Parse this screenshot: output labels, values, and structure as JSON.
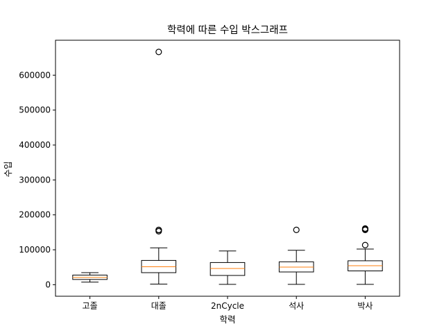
{
  "chart_data": {
    "type": "box",
    "title": "학력에 따른 수입 박스그래프",
    "xlabel": "학력",
    "ylabel": "수입",
    "categories": [
      "고졸",
      "대졸",
      "2nCycle",
      "석사",
      "박사"
    ],
    "ylim": [
      -33000,
      700000
    ],
    "yticks": [
      0,
      100000,
      200000,
      300000,
      400000,
      500000,
      600000
    ],
    "ytick_labels": [
      "0",
      "100000",
      "200000",
      "300000",
      "400000",
      "500000",
      "600000"
    ],
    "grid": false,
    "boxes": [
      {
        "category": "고졸",
        "whisker_low": 7500,
        "q1": 15000,
        "median": 21000,
        "q3": 27500,
        "whisker_high": 34500,
        "outliers": []
      },
      {
        "category": "대졸",
        "whisker_low": 1700,
        "q1": 34500,
        "median": 51500,
        "q3": 69500,
        "whisker_high": 105500,
        "outliers": [
          153000,
          156500,
          157000,
          666500
        ]
      },
      {
        "category": "2nCycle",
        "whisker_low": 1000,
        "q1": 26500,
        "median": 46500,
        "q3": 63500,
        "whisker_high": 96500,
        "outliers": []
      },
      {
        "category": "석사",
        "whisker_low": 1000,
        "q1": 36500,
        "median": 50500,
        "q3": 65500,
        "whisker_high": 98500,
        "outliers": [
          157000
        ]
      },
      {
        "category": "박사",
        "whisker_low": 1000,
        "q1": 39500,
        "median": 54500,
        "q3": 68500,
        "whisker_high": 102000,
        "outliers": [
          113500,
          157000,
          159000,
          161000
        ]
      }
    ],
    "colors": {
      "box": "#000000",
      "median": "#ff7f0e",
      "outlier": "#000000"
    }
  }
}
